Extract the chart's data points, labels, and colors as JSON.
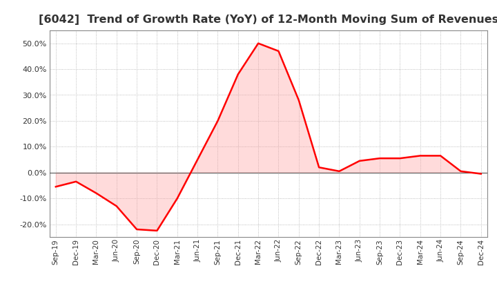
{
  "title": "[6042]  Trend of Growth Rate (YoY) of 12-Month Moving Sum of Revenues",
  "title_fontsize": 11.5,
  "x_labels": [
    "Sep-19",
    "Dec-19",
    "Mar-20",
    "Jun-20",
    "Sep-20",
    "Dec-20",
    "Mar-21",
    "Jun-21",
    "Sep-21",
    "Dec-21",
    "Mar-22",
    "Jun-22",
    "Sep-22",
    "Dec-22",
    "Mar-23",
    "Jun-23",
    "Sep-23",
    "Dec-23",
    "Mar-24",
    "Jun-24",
    "Sep-24",
    "Dec-24"
  ],
  "y_values": [
    -5.5,
    -3.5,
    -8.0,
    -13.0,
    -22.0,
    -22.5,
    -10.0,
    5.0,
    20.0,
    38.0,
    50.0,
    47.0,
    28.0,
    2.0,
    0.5,
    4.5,
    5.5,
    5.5,
    6.5,
    6.5,
    0.5,
    -0.5
  ],
  "line_color": "#ff0000",
  "fill_color": "#ff9999",
  "fill_alpha": 0.35,
  "background_color": "#ffffff",
  "grid_color": "#aaaaaa",
  "ylim": [
    -25,
    55
  ],
  "yticks": [
    -20,
    -10,
    0,
    10,
    20,
    30,
    40,
    50
  ],
  "zero_line_color": "#555555",
  "border_color": "#888888"
}
